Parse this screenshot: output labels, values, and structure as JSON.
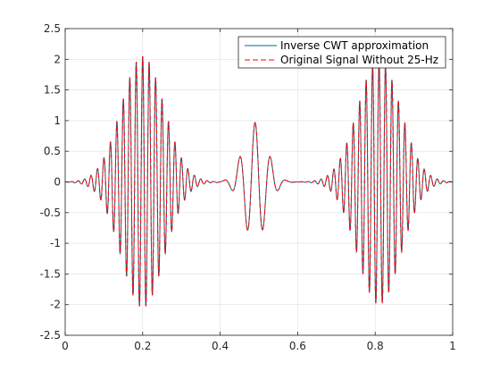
{
  "chart_data": {
    "type": "line",
    "title": "",
    "xlabel": "",
    "ylabel": "",
    "xlim": [
      0,
      1
    ],
    "ylim": [
      -2.5,
      2.5
    ],
    "xticks": [
      0,
      0.2,
      0.4,
      0.6,
      0.8,
      1
    ],
    "xtick_labels": [
      "0",
      "0.2",
      "0.4",
      "0.6",
      "0.8",
      "1"
    ],
    "yticks": [
      -2.5,
      -2,
      -1.5,
      -1,
      -0.5,
      0,
      0.5,
      1,
      1.5,
      2,
      2.5
    ],
    "ytick_labels": [
      "-2.5",
      "-2",
      "-1.5",
      "-1",
      "-0.5",
      "0",
      "0.5",
      "1",
      "1.5",
      "2",
      "2.5"
    ],
    "grid": true,
    "legend_location": "top-right",
    "series": [
      {
        "name": "Inverse CWT approximation",
        "color": "#006d8a",
        "style": "solid"
      },
      {
        "name": "Original Signal Without 25-Hz",
        "color": "#ff0000",
        "style": "dashed"
      }
    ],
    "signal": {
      "x_start": 0,
      "x_end": 1,
      "components": [
        {
          "kind": "burst",
          "center": 0.2,
          "peak_amplitude": 2.05,
          "freq_hz": 60
        },
        {
          "kind": "burst",
          "center": 0.81,
          "peak_amplitude": 2.0,
          "freq_hz": 60
        },
        {
          "kind": "wavelet",
          "center": 0.49,
          "peak_amplitude": 0.97,
          "freq_hz": 25
        }
      ]
    }
  }
}
